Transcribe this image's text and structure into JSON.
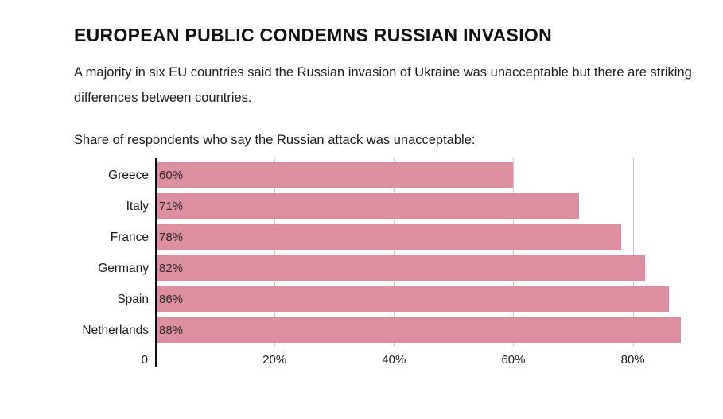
{
  "header": {
    "title": "EUROPEAN PUBLIC CONDEMNS RUSSIAN INVASION",
    "subtitle": "A majority in six EU countries said the Russian invasion of Ukraine was unacceptable but there are striking differences between countries."
  },
  "chart": {
    "caption": "Share of respondents who say the Russian attack was unacceptable:"
  },
  "chart_data": {
    "type": "bar",
    "orientation": "horizontal",
    "title": "Share of respondents who say the Russian attack was unacceptable:",
    "categories": [
      "Greece",
      "Italy",
      "France",
      "Germany",
      "Spain",
      "Netherlands"
    ],
    "values": [
      60,
      71,
      78,
      82,
      86,
      88
    ],
    "value_labels": [
      "60%",
      "71%",
      "78%",
      "82%",
      "86%",
      "88%"
    ],
    "xlabel": "",
    "ylabel": "",
    "xlim": [
      0,
      92.7
    ],
    "x_ticks": [
      0,
      20,
      40,
      60,
      80
    ],
    "x_tick_labels": [
      "0",
      "20%",
      "40%",
      "60%",
      "80%"
    ],
    "grid": true,
    "legend": "none",
    "colors": {
      "bar": "#dc8fa0",
      "axis": "#111111",
      "gridline": "#c9c9c9",
      "text": "#1c1c1c"
    }
  }
}
